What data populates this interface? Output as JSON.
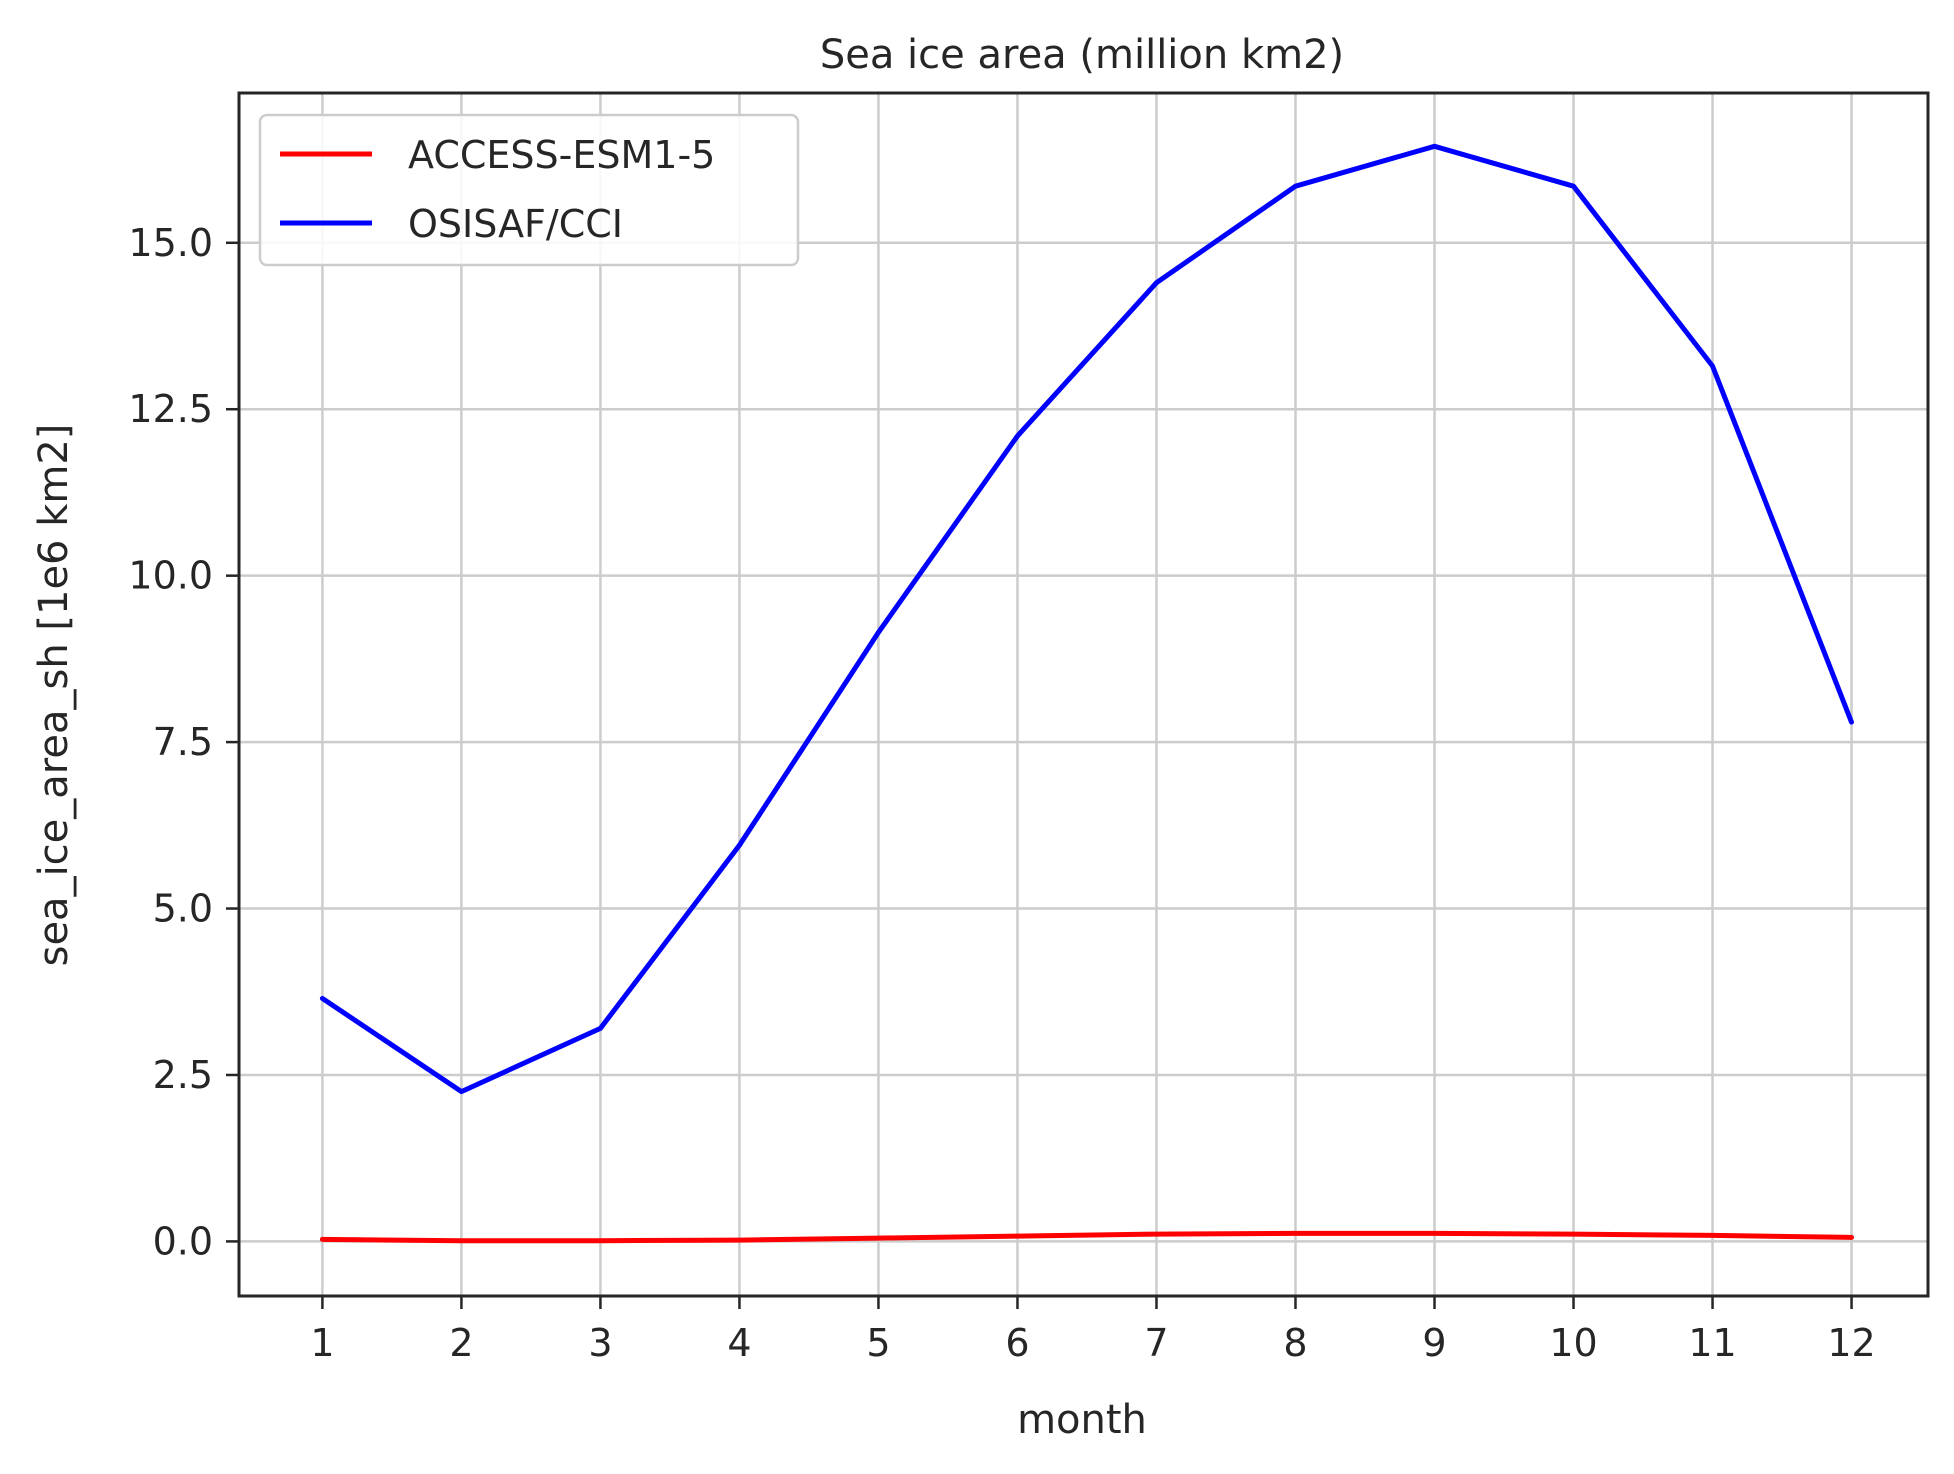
{
  "chart_data": {
    "type": "line",
    "title": "Sea ice area (million km2)",
    "xlabel": "month",
    "ylabel": "sea_ice_area_sh [1e6 km2]",
    "xlim": [
      0.4,
      12.55
    ],
    "ylim": [
      -0.82,
      17.25
    ],
    "xticks": [
      1,
      2,
      3,
      4,
      5,
      6,
      7,
      8,
      9,
      10,
      11,
      12
    ],
    "xtick_labels": [
      "1",
      "2",
      "3",
      "4",
      "5",
      "6",
      "7",
      "8",
      "9",
      "10",
      "11",
      "12"
    ],
    "yticks": [
      0,
      2.5,
      5,
      7.5,
      10,
      12.5,
      15
    ],
    "ytick_labels": [
      "0.0",
      "2.5",
      "5.0",
      "7.5",
      "10.0",
      "12.5",
      "15.0"
    ],
    "grid": true,
    "legend_position": "upper-left",
    "x": [
      1,
      2,
      3,
      4,
      5,
      6,
      7,
      8,
      9,
      10,
      11,
      12
    ],
    "series": [
      {
        "name": "ACCESS-ESM1-5",
        "color": "#ff0000",
        "values": [
          0.03,
          0.01,
          0.01,
          0.02,
          0.05,
          0.08,
          0.11,
          0.12,
          0.12,
          0.11,
          0.09,
          0.06
        ]
      },
      {
        "name": "OSISAF/CCI",
        "color": "#0000ff",
        "values": [
          3.65,
          2.25,
          3.2,
          5.95,
          9.15,
          12.1,
          14.4,
          15.85,
          16.45,
          15.85,
          13.15,
          7.8
        ]
      }
    ]
  }
}
